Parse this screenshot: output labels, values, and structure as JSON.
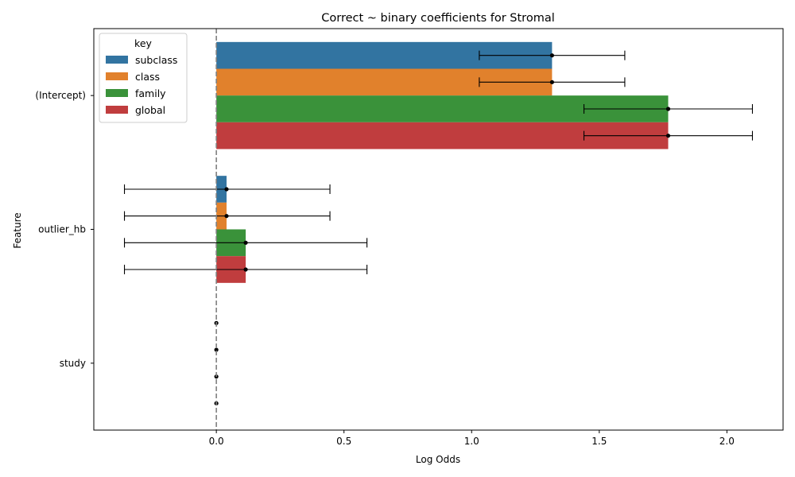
{
  "chart_data": {
    "type": "bar",
    "orientation": "horizontal",
    "title": "Correct ~ binary coefficients for Stromal",
    "xlabel": "Log Odds",
    "ylabel": "Feature",
    "categories": [
      "(Intercept)",
      "outlier_hb",
      "study"
    ],
    "xlim": [
      -0.48,
      2.22
    ],
    "xticks": [
      0.0,
      0.5,
      1.0,
      1.5,
      2.0
    ],
    "xtick_labels": [
      "0.0",
      "0.5",
      "1.0",
      "1.5",
      "2.0"
    ],
    "reference_line": 0.0,
    "legend": {
      "title": "key",
      "position": "top-left"
    },
    "series": [
      {
        "name": "subclass",
        "color": "#3274a1",
        "values": [
          1.315,
          0.04,
          0.0
        ],
        "ci_low": [
          1.03,
          -0.36,
          0.0
        ],
        "ci_high": [
          1.6,
          0.445,
          0.0
        ]
      },
      {
        "name": "class",
        "color": "#e1812c",
        "values": [
          1.315,
          0.04,
          0.0
        ],
        "ci_low": [
          1.03,
          -0.36,
          0.0
        ],
        "ci_high": [
          1.6,
          0.445,
          0.0
        ]
      },
      {
        "name": "family",
        "color": "#3a923a",
        "values": [
          1.77,
          0.115,
          0.0
        ],
        "ci_low": [
          1.44,
          -0.36,
          0.0
        ],
        "ci_high": [
          2.1,
          0.59,
          0.0
        ]
      },
      {
        "name": "global",
        "color": "#c03d3e",
        "values": [
          1.77,
          0.115,
          0.0
        ],
        "ci_low": [
          1.44,
          -0.36,
          0.0
        ],
        "ci_high": [
          2.1,
          0.59,
          0.0
        ]
      }
    ]
  }
}
